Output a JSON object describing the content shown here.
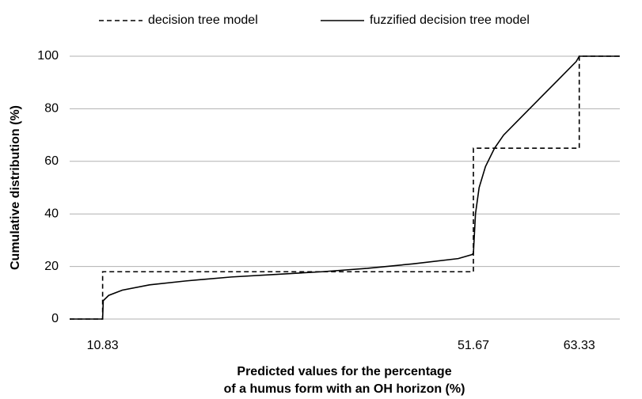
{
  "chart_data": {
    "type": "line",
    "ylabel": "Cumulative distribution (%)",
    "xlabel": [
      "Predicted values for the percentage",
      "of a humus form with an OH horizon (%)"
    ],
    "xlim": [
      7.2,
      67.8
    ],
    "xticks": [
      10.83,
      51.67,
      63.33
    ],
    "ylim": [
      0,
      100
    ],
    "yticks": [
      0,
      20,
      40,
      60,
      80,
      100
    ],
    "grid": true,
    "legend": "top",
    "series": [
      {
        "name": "decision tree model",
        "color": "#000000",
        "dash": true,
        "x": [
          7.2,
          10.83,
          10.83,
          51.67,
          51.67,
          63.33,
          63.33,
          67.8
        ],
        "values": [
          0,
          0,
          18,
          18,
          65,
          65,
          100,
          100
        ]
      },
      {
        "name": "fuzzified decision tree model",
        "color": "#000000",
        "dash": false,
        "x": [
          7.2,
          10.83,
          10.9,
          11.5,
          13,
          16,
          20,
          25,
          30,
          35,
          40,
          45,
          50,
          51.5,
          51.67,
          51.9,
          52.3,
          53,
          54,
          55,
          57,
          59,
          61,
          63,
          63.33,
          67.8
        ],
        "values": [
          0,
          0,
          7,
          9,
          11,
          13,
          14.5,
          16,
          17,
          18,
          19.3,
          21,
          23,
          24.5,
          25,
          40,
          50,
          58,
          65,
          70,
          77,
          84,
          91,
          98,
          100,
          100
        ]
      }
    ]
  }
}
